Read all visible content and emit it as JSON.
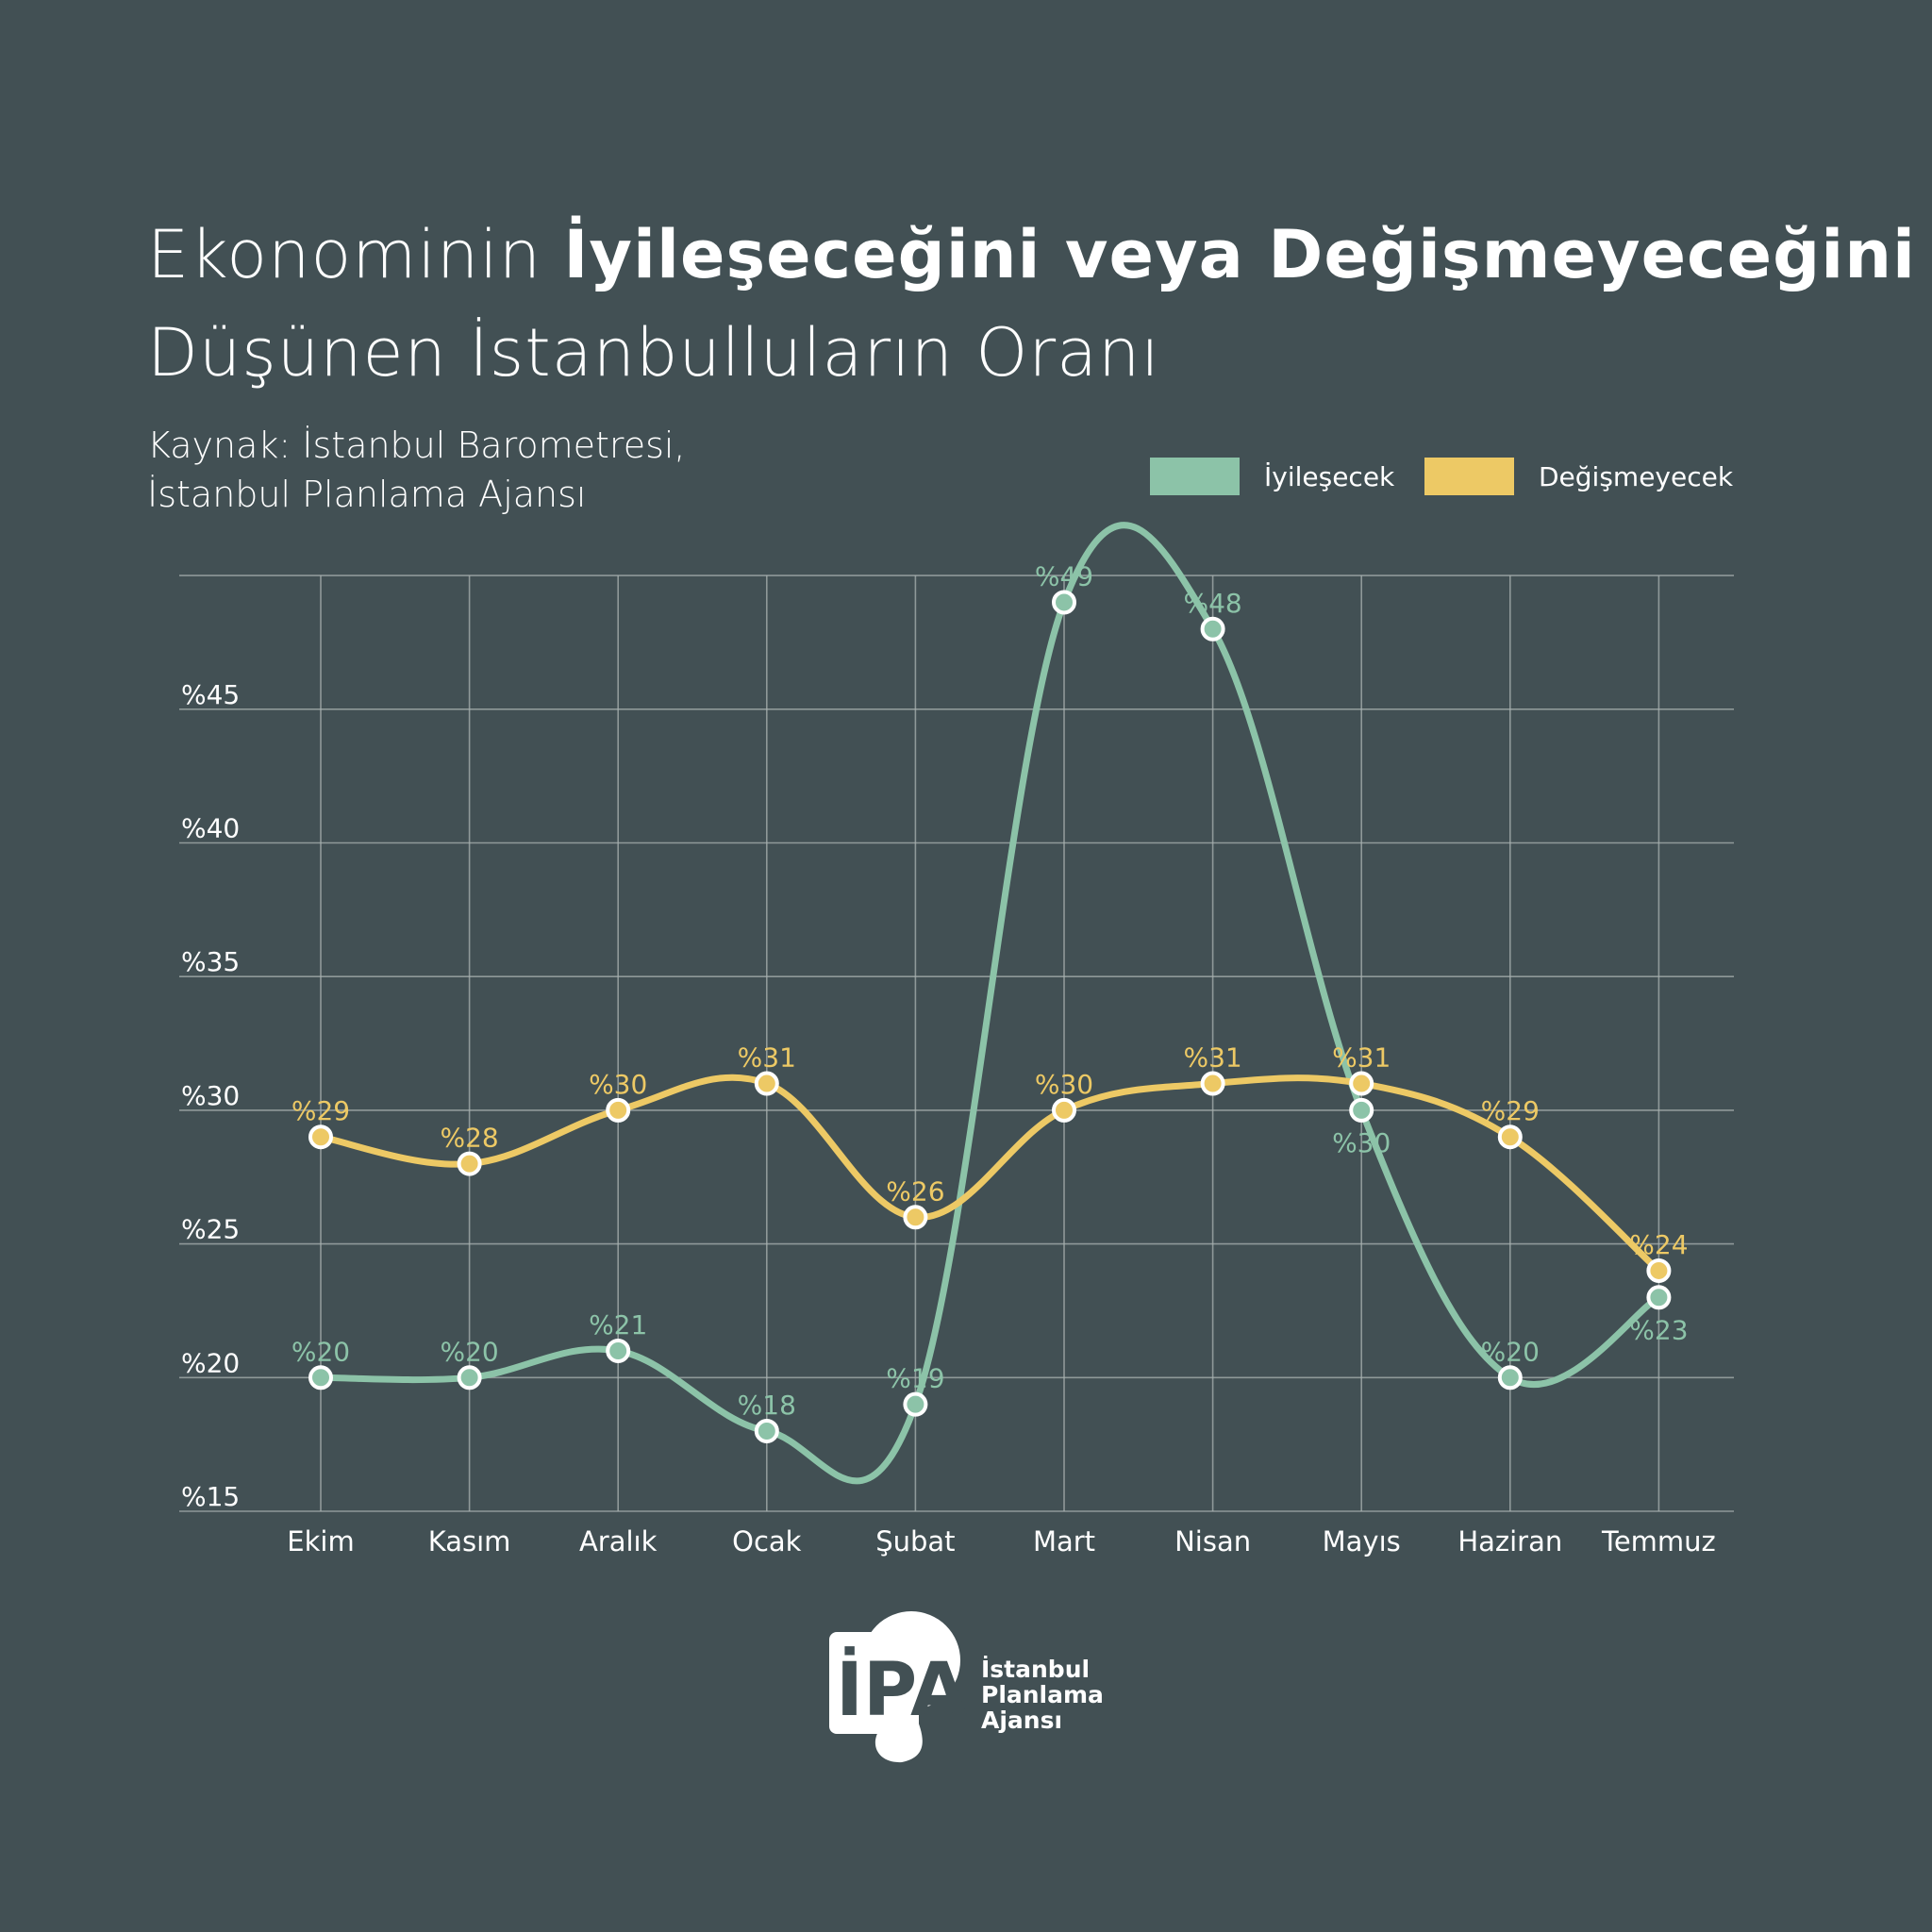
{
  "title": {
    "part1": "Ekonominin ",
    "bold": "İyileşeceğini veya Değişmeyeceğini",
    "line2": "Düşünen İstanbulluların Oranı"
  },
  "source": {
    "line1": "Kaynak: İstanbul Barometresi,",
    "line2": "İstanbul Planlama Ajansı"
  },
  "logo": {
    "mark": "İPA",
    "line1": "İstanbul",
    "line2": "Planlama",
    "line3": "Ajansı"
  },
  "colors": {
    "background": "#425054",
    "grid": "#a9b2b1",
    "iyilesecek": "#8cc3a8",
    "degismeyecek": "#edc965"
  },
  "chart_data": {
    "type": "line",
    "categories": [
      "Ekim",
      "Kasım",
      "Aralık",
      "Ocak",
      "Şubat",
      "Mart",
      "Nisan",
      "Mayıs",
      "Haziran",
      "Temmuz"
    ],
    "series": [
      {
        "name": "İyileşecek",
        "color": "#8cc3a8",
        "values": [
          20,
          20,
          21,
          18,
          19,
          49,
          48,
          30,
          20,
          23
        ],
        "labels": [
          "%20",
          "%20",
          "%21",
          "%18",
          "%19",
          "%49",
          "%48",
          "%30",
          "%20",
          "%23"
        ],
        "label_side": [
          "above",
          "above",
          "above",
          "above",
          "above",
          "above",
          "above",
          "below",
          "above",
          "below"
        ]
      },
      {
        "name": "Değişmeyecek",
        "color": "#edc965",
        "values": [
          29,
          28,
          30,
          31,
          26,
          30,
          31,
          31,
          29,
          24
        ],
        "labels": [
          "%29",
          "%28",
          "%30",
          "%31",
          "%26",
          "%30",
          "%31",
          "%31",
          "%29",
          "%24"
        ],
        "label_side": [
          "above",
          "above",
          "above",
          "above",
          "above",
          "above",
          "above",
          "above",
          "above",
          "above"
        ]
      }
    ],
    "yticks": [
      15,
      20,
      25,
      30,
      35,
      40,
      45
    ],
    "ytick_labels": [
      "%15",
      "%20",
      "%25",
      "%30",
      "%35",
      "%40",
      "%45"
    ],
    "ylim": [
      15,
      50
    ],
    "grid": true,
    "legend_position": "top-right"
  }
}
